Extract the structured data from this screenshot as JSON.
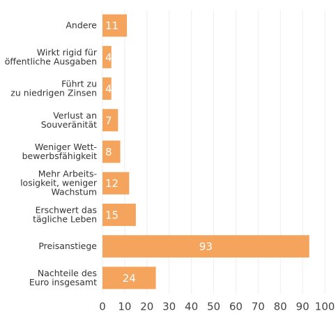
{
  "chart_data": {
    "type": "bar",
    "orientation": "horizontal",
    "categories": [
      "Andere",
      "Wirkt rigid für\nöffentliche Ausgaben",
      "Führt zu\nzu niedrigen Zinsen",
      "Verlust an\nSouveränität",
      "Weniger Wett-\nbewerbsfähigkeit",
      "Mehr Arbeits-\nlosigkeit, weniger\nWachstum",
      "Erschwert das\ntägliche Leben",
      "Preisanstiege",
      "Nachteile des\nEuro insgesamt"
    ],
    "values": [
      11,
      4,
      4,
      7,
      8,
      12,
      15,
      93,
      24
    ],
    "color": "#f5a45d",
    "xlim": [
      0,
      100
    ],
    "xticks": [
      0,
      10,
      20,
      30,
      40,
      50,
      60,
      70,
      80,
      90,
      100
    ],
    "grid": true
  }
}
